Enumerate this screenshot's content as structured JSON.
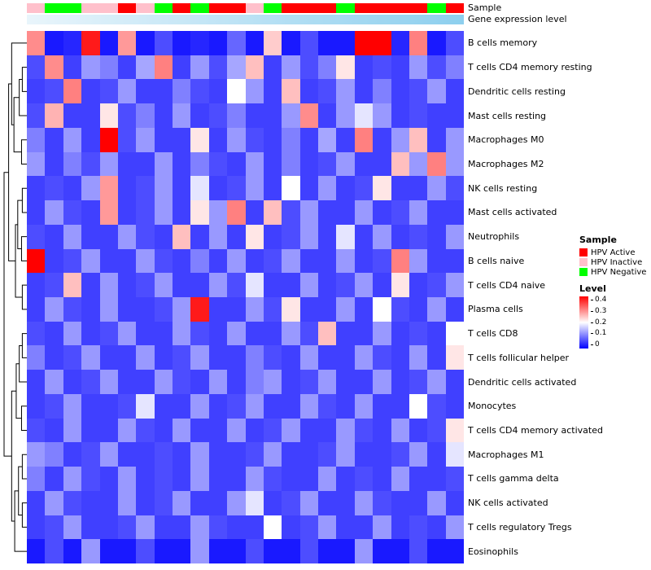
{
  "chart_data": {
    "type": "heatmap",
    "title": "",
    "value_domain": [
      0,
      0.4
    ],
    "colormap": {
      "low": "#0000FF",
      "mid": "#FFFFFF",
      "high": "#FF0000"
    },
    "n_columns": 24,
    "row_labels": [
      "B cells memory",
      "T cells CD4 memory resting",
      "Dendritic cells resting",
      "Mast cells resting",
      "Macrophages M0",
      "Macrophages M2",
      "NK cells resting",
      "Mast cells activated",
      "Neutrophils",
      "B cells naive",
      "T cells CD4 naive",
      "Plasma cells",
      "T cells CD8",
      "T cells follicular helper",
      "Dendritic cells activated",
      "Monocytes",
      "T cells CD4 memory activated",
      "Macrophages M1",
      "T cells gamma delta",
      "NK cells activated",
      "T cells regulatory Tregs",
      "Eosinophils"
    ],
    "values": [
      [
        0.29,
        0.02,
        0.03,
        0.38,
        0.02,
        0.28,
        0.02,
        0.06,
        0.02,
        0.03,
        0.02,
        0.08,
        0.02,
        0.24,
        0.02,
        0.06,
        0.02,
        0.02,
        0.4,
        0.4,
        0.03,
        0.3,
        0.02,
        0.06
      ],
      [
        0.06,
        0.29,
        0.05,
        0.12,
        0.1,
        0.05,
        0.13,
        0.3,
        0.05,
        0.12,
        0.06,
        0.13,
        0.25,
        0.05,
        0.12,
        0.06,
        0.1,
        0.22,
        0.05,
        0.06,
        0.05,
        0.12,
        0.06,
        0.1
      ],
      [
        0.05,
        0.06,
        0.3,
        0.05,
        0.06,
        0.12,
        0.05,
        0.05,
        0.1,
        0.06,
        0.05,
        0.2,
        0.12,
        0.05,
        0.25,
        0.05,
        0.06,
        0.12,
        0.05,
        0.1,
        0.05,
        0.06,
        0.12,
        0.05
      ],
      [
        0.06,
        0.26,
        0.05,
        0.05,
        0.22,
        0.06,
        0.1,
        0.05,
        0.12,
        0.05,
        0.06,
        0.1,
        0.05,
        0.05,
        0.12,
        0.29,
        0.05,
        0.12,
        0.18,
        0.12,
        0.05,
        0.06,
        0.05,
        0.05
      ],
      [
        0.1,
        0.05,
        0.12,
        0.05,
        0.4,
        0.06,
        0.12,
        0.05,
        0.05,
        0.22,
        0.05,
        0.12,
        0.06,
        0.05,
        0.1,
        0.05,
        0.13,
        0.05,
        0.3,
        0.05,
        0.12,
        0.25,
        0.05,
        0.12
      ],
      [
        0.12,
        0.05,
        0.1,
        0.06,
        0.12,
        0.05,
        0.05,
        0.12,
        0.05,
        0.1,
        0.06,
        0.05,
        0.12,
        0.05,
        0.1,
        0.05,
        0.06,
        0.12,
        0.05,
        0.05,
        0.25,
        0.12,
        0.3,
        0.12
      ],
      [
        0.05,
        0.06,
        0.05,
        0.12,
        0.28,
        0.05,
        0.06,
        0.12,
        0.05,
        0.18,
        0.05,
        0.06,
        0.12,
        0.05,
        0.2,
        0.05,
        0.12,
        0.05,
        0.06,
        0.22,
        0.05,
        0.05,
        0.12,
        0.06
      ],
      [
        0.05,
        0.12,
        0.06,
        0.05,
        0.28,
        0.05,
        0.06,
        0.12,
        0.05,
        0.22,
        0.12,
        0.3,
        0.05,
        0.25,
        0.06,
        0.12,
        0.05,
        0.05,
        0.12,
        0.05,
        0.06,
        0.12,
        0.05,
        0.05
      ],
      [
        0.06,
        0.05,
        0.12,
        0.05,
        0.05,
        0.12,
        0.06,
        0.05,
        0.25,
        0.05,
        0.12,
        0.05,
        0.22,
        0.05,
        0.06,
        0.12,
        0.05,
        0.18,
        0.05,
        0.12,
        0.05,
        0.06,
        0.05,
        0.12
      ],
      [
        0.4,
        0.05,
        0.06,
        0.12,
        0.05,
        0.05,
        0.12,
        0.06,
        0.05,
        0.1,
        0.05,
        0.12,
        0.05,
        0.06,
        0.12,
        0.05,
        0.05,
        0.12,
        0.05,
        0.06,
        0.3,
        0.12,
        0.05,
        0.05
      ],
      [
        0.05,
        0.06,
        0.25,
        0.05,
        0.12,
        0.05,
        0.06,
        0.12,
        0.05,
        0.05,
        0.12,
        0.06,
        0.18,
        0.05,
        0.05,
        0.12,
        0.05,
        0.06,
        0.12,
        0.05,
        0.22,
        0.05,
        0.06,
        0.12
      ],
      [
        0.05,
        0.12,
        0.06,
        0.05,
        0.12,
        0.05,
        0.05,
        0.06,
        0.12,
        0.38,
        0.05,
        0.05,
        0.12,
        0.06,
        0.22,
        0.05,
        0.05,
        0.12,
        0.05,
        0.2,
        0.06,
        0.05,
        0.12,
        0.05
      ],
      [
        0.06,
        0.05,
        0.12,
        0.05,
        0.06,
        0.12,
        0.05,
        0.05,
        0.12,
        0.06,
        0.05,
        0.12,
        0.05,
        0.05,
        0.12,
        0.06,
        0.25,
        0.05,
        0.05,
        0.12,
        0.05,
        0.06,
        0.05,
        0.2
      ],
      [
        0.1,
        0.05,
        0.06,
        0.12,
        0.05,
        0.05,
        0.12,
        0.05,
        0.06,
        0.12,
        0.05,
        0.05,
        0.1,
        0.06,
        0.05,
        0.12,
        0.05,
        0.05,
        0.12,
        0.06,
        0.05,
        0.12,
        0.05,
        0.22
      ],
      [
        0.05,
        0.12,
        0.05,
        0.06,
        0.12,
        0.05,
        0.05,
        0.12,
        0.06,
        0.05,
        0.12,
        0.05,
        0.1,
        0.12,
        0.05,
        0.06,
        0.12,
        0.05,
        0.05,
        0.12,
        0.05,
        0.06,
        0.12,
        0.05
      ],
      [
        0.05,
        0.06,
        0.12,
        0.05,
        0.05,
        0.06,
        0.18,
        0.05,
        0.05,
        0.12,
        0.05,
        0.06,
        0.12,
        0.05,
        0.05,
        0.12,
        0.06,
        0.05,
        0.12,
        0.05,
        0.05,
        0.2,
        0.06,
        0.05
      ],
      [
        0.06,
        0.05,
        0.12,
        0.05,
        0.05,
        0.12,
        0.06,
        0.05,
        0.12,
        0.05,
        0.05,
        0.12,
        0.05,
        0.06,
        0.12,
        0.05,
        0.05,
        0.12,
        0.06,
        0.05,
        0.12,
        0.05,
        0.06,
        0.22
      ],
      [
        0.12,
        0.1,
        0.05,
        0.06,
        0.12,
        0.05,
        0.05,
        0.06,
        0.05,
        0.12,
        0.05,
        0.05,
        0.06,
        0.12,
        0.05,
        0.05,
        0.06,
        0.12,
        0.05,
        0.05,
        0.06,
        0.12,
        0.05,
        0.18
      ],
      [
        0.1,
        0.05,
        0.12,
        0.06,
        0.05,
        0.12,
        0.05,
        0.06,
        0.05,
        0.12,
        0.05,
        0.05,
        0.12,
        0.06,
        0.05,
        0.05,
        0.12,
        0.05,
        0.06,
        0.05,
        0.12,
        0.05,
        0.05,
        0.06
      ],
      [
        0.05,
        0.12,
        0.06,
        0.05,
        0.05,
        0.12,
        0.05,
        0.06,
        0.12,
        0.05,
        0.05,
        0.12,
        0.18,
        0.05,
        0.06,
        0.12,
        0.05,
        0.05,
        0.12,
        0.06,
        0.05,
        0.05,
        0.12,
        0.05
      ],
      [
        0.05,
        0.06,
        0.12,
        0.05,
        0.05,
        0.06,
        0.12,
        0.05,
        0.05,
        0.12,
        0.06,
        0.05,
        0.05,
        0.2,
        0.05,
        0.06,
        0.12,
        0.05,
        0.05,
        0.12,
        0.05,
        0.06,
        0.05,
        0.12
      ],
      [
        0.02,
        0.06,
        0.02,
        0.12,
        0.02,
        0.02,
        0.06,
        0.02,
        0.02,
        0.12,
        0.02,
        0.02,
        0.06,
        0.02,
        0.02,
        0.06,
        0.02,
        0.02,
        0.12,
        0.02,
        0.02,
        0.06,
        0.02,
        0.02
      ]
    ],
    "column_annotation": {
      "sample_label": "Sample",
      "expression_label": "Gene expression level",
      "sample_values": [
        "HPV Inactive",
        "HPV Negative",
        "HPV Negative",
        "HPV Inactive",
        "HPV Inactive",
        "HPV Active",
        "HPV Inactive",
        "HPV Negative",
        "HPV Active",
        "HPV Negative",
        "HPV Active",
        "HPV Active",
        "HPV Inactive",
        "HPV Negative",
        "HPV Active",
        "HPV Active",
        "HPV Active",
        "HPV Negative",
        "HPV Active",
        "HPV Active",
        "HPV Active",
        "HPV Active",
        "HPV Negative",
        "HPV Active"
      ],
      "sample_colors": {
        "HPV Active": "#FF0000",
        "HPV Inactive": "#FFC0CB",
        "HPV Negative": "#00FF00"
      },
      "expression_gradient": [
        "#E9F5FB",
        "#8DCFEE"
      ]
    },
    "legend": {
      "sample_title": "Sample",
      "sample_items": [
        {
          "label": "HPV Active",
          "color": "#FF0000"
        },
        {
          "label": "HPV Inactive",
          "color": "#FFC0CB"
        },
        {
          "label": "HPV Negative",
          "color": "#00FF00"
        }
      ],
      "level_title": "Level",
      "level_ticks": [
        "0.4",
        "0.3",
        "0.2",
        "0.1",
        "0"
      ]
    },
    "row_dendrogram": {
      "h": 1.5,
      "c": [
        {
          "h": 1.2,
          "c": [
            {
              "h": 1.0,
              "c": [
                0,
                {
                  "h": 0.85,
                  "c": [
                    {
                      "h": 0.5,
                      "c": [
                        {
                          "h": 0.3,
                          "c": [
                            1,
                            2
                          ]
                        },
                        3
                      ]
                    },
                    {
                      "h": 0.35,
                      "c": [
                        4,
                        5
                      ]
                    }
                  ]
                }
              ]
            },
            {
              "h": 0.75,
              "c": [
                {
                  "h": 0.6,
                  "c": [
                    {
                      "h": 0.3,
                      "c": [
                        6,
                        7
                      ]
                    },
                    {
                      "h": 0.35,
                      "c": [
                        8,
                        9
                      ]
                    }
                  ]
                },
                {
                  "h": 0.3,
                  "c": [
                    10,
                    11
                  ]
                }
              ]
            }
          ]
        },
        {
          "h": 1.0,
          "c": [
            {
              "h": 0.7,
              "c": [
                {
                  "h": 0.5,
                  "c": [
                    {
                      "h": 0.3,
                      "c": [
                        12,
                        13
                      ]
                    },
                    14
                  ]
                },
                {
                  "h": 0.35,
                  "c": [
                    15,
                    16
                  ]
                }
              ]
            },
            {
              "h": 0.8,
              "c": [
                {
                  "h": 0.55,
                  "c": [
                    {
                      "h": 0.3,
                      "c": [
                        17,
                        18
                      ]
                    },
                    {
                      "h": 0.3,
                      "c": [
                        19,
                        20
                      ]
                    }
                  ]
                },
                21
              ]
            }
          ]
        }
      ]
    }
  }
}
